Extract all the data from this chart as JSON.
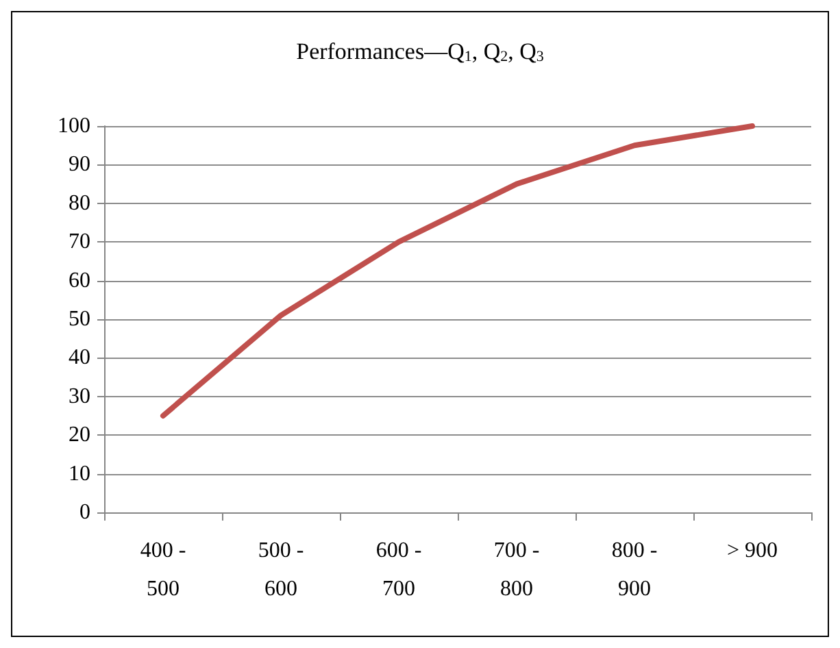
{
  "chart_data": {
    "type": "line",
    "title": "Performances—Q$_{1}$, Q$_{2}$, Q$_{3}$",
    "categories": [
      "400 - 500",
      "500 - 600",
      "600 - 700",
      "700 - 800",
      "800 - 900",
      "> 900"
    ],
    "series": [
      {
        "color": "#c0504d",
        "values": [
          25,
          51,
          70,
          85,
          95,
          100
        ]
      }
    ],
    "ylim": [
      0,
      100
    ],
    "yticks": [
      0,
      10,
      20,
      30,
      40,
      50,
      60,
      70,
      80,
      90,
      100
    ],
    "grid": "y",
    "marker": "none",
    "line_style": "solid"
  }
}
